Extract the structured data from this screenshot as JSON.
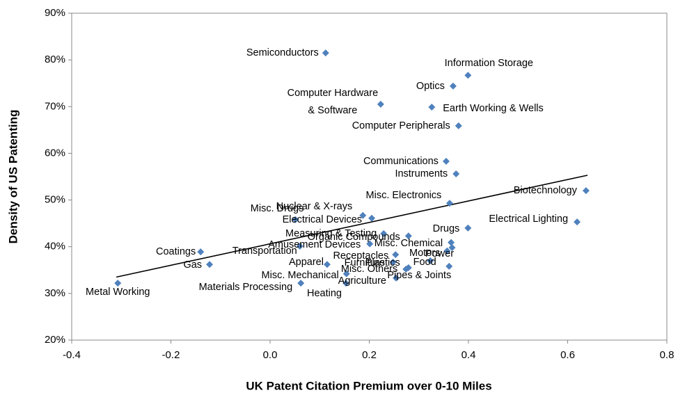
{
  "chart_data": {
    "type": "scatter",
    "xlabel": "UK Patent Citation Premium over 0-10 Miles",
    "ylabel": "Density of US Patenting",
    "color": "#4f81bd",
    "xlim": [
      -0.4,
      0.8
    ],
    "xticks": [
      -0.4,
      -0.2,
      {
        "value": 0,
        "label": "0.0"
      },
      0.2,
      0.4,
      0.6,
      0.8
    ],
    "ylim": [
      20,
      90
    ],
    "yticks": [
      {
        "value": 20,
        "label": "20%"
      },
      {
        "value": 30,
        "label": "30%"
      },
      {
        "value": 40,
        "label": "40%"
      },
      {
        "value": 50,
        "label": "50%"
      },
      {
        "value": 60,
        "label": "60%"
      },
      {
        "value": 70,
        "label": "70%"
      },
      {
        "value": 80,
        "label": "80%"
      },
      {
        "value": 90,
        "label": "90%"
      }
    ],
    "labels": [
      "Semiconductors",
      "Information Storage",
      "Optics",
      "Computer Hardware\n& Software",
      "Earth Working & Wells",
      "Computer Peripherals",
      "Communications",
      "Instruments",
      "Biotechnology",
      "Misc. Electronics",
      "Electrical Lighting",
      "Drugs",
      "Nuclear & X-rays",
      "Electrical Devices",
      "Misc. Drugs",
      "Measuring & Testing",
      "Organic Compounds",
      "Misc. Chemical",
      "Power",
      "Motors",
      "Amusement Devices",
      "Transportation",
      "Coatings",
      "Gas",
      "Metal Working",
      "Receptacles",
      "Apparel",
      "Furniture",
      "Plastics",
      "Food",
      "Misc. Others",
      "Pipes & Joints",
      "Misc. Mechanical",
      "Agriculture",
      "Materials Processing",
      "Heating"
    ],
    "x": [
      0.112,
      0.399,
      0.369,
      0.223,
      0.326,
      0.38,
      0.355,
      0.375,
      0.637,
      0.362,
      0.619,
      0.399,
      0.187,
      0.205,
      0.051,
      0.229,
      0.279,
      0.365,
      0.367,
      0.357,
      0.201,
      0.06,
      -0.14,
      -0.122,
      -0.307,
      0.253,
      0.115,
      0.248,
      0.279,
      0.323,
      0.274,
      0.361,
      0.154,
      0.254,
      0.062,
      0.153
    ],
    "y": [
      81.5,
      76.7,
      74.4,
      70.5,
      69.9,
      65.9,
      58.3,
      55.6,
      52.0,
      49.3,
      45.3,
      44.0,
      46.7,
      46.1,
      45.8,
      42.8,
      42.3,
      40.9,
      39.8,
      39.1,
      40.6,
      40.1,
      38.9,
      36.2,
      32.2,
      38.3,
      36.2,
      36.7,
      35.5,
      37.0,
      35.2,
      35.8,
      34.2,
      33.3,
      32.2,
      32.2
    ],
    "trendline": {
      "x": [
        -0.31,
        0.64
      ],
      "y": [
        33.5,
        55.3
      ]
    }
  }
}
